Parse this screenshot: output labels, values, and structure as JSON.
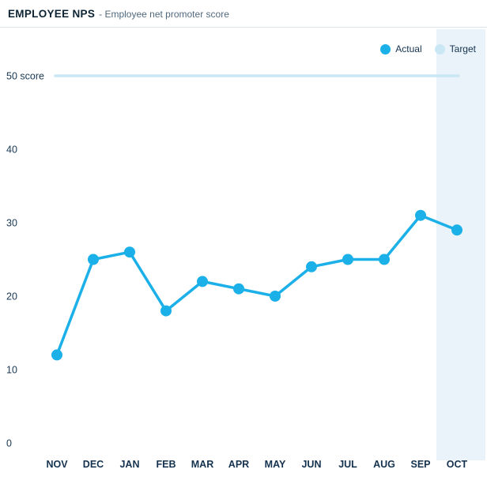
{
  "header": {
    "title": "EMPLOYEE NPS",
    "subtitle": "- Employee net promoter score"
  },
  "legend": [
    {
      "label": "Actual",
      "color": "#1cb0e8"
    },
    {
      "label": "Target",
      "color": "#c9e7f5"
    }
  ],
  "colors": {
    "actual": "#1cb0e8",
    "target": "#c9e7f5",
    "highlight_band": "#e9f3f9",
    "title_text": "#0c2334",
    "label_text": "#173753"
  },
  "chart_data": {
    "type": "line",
    "title": "EMPLOYEE NPS - Employee net promoter score",
    "categories": [
      "NOV",
      "DEC",
      "JAN",
      "FEB",
      "MAR",
      "APR",
      "MAY",
      "JUN",
      "JUL",
      "AUG",
      "SEP",
      "OCT"
    ],
    "series": [
      {
        "name": "Actual",
        "values": [
          12,
          25,
          26,
          18,
          22,
          21,
          20,
          24,
          25,
          25,
          31,
          29
        ],
        "color": "#1cb0e8"
      },
      {
        "name": "Target",
        "values": [
          50,
          50,
          50,
          50,
          50,
          50,
          50,
          50,
          50,
          50,
          50,
          50
        ],
        "color": "#c9e7f5"
      }
    ],
    "xlabel": "",
    "ylabel": "score",
    "ylim": [
      0,
      52
    ],
    "y_ticks": [
      0,
      10,
      20,
      30,
      40,
      50
    ],
    "y_tick_labels": [
      "0",
      "10",
      "20",
      "30",
      "40",
      "50 score"
    ],
    "grid": false,
    "legend_position": "top-right",
    "highlight_category": "OCT"
  }
}
